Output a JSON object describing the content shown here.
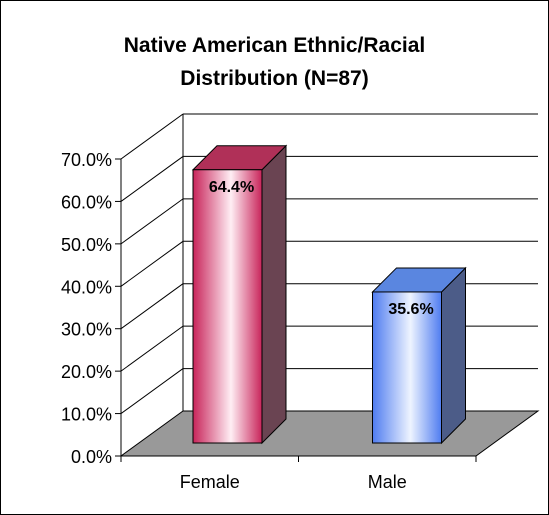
{
  "chart_data": {
    "type": "bar",
    "title_lines": [
      "Native American Ethnic/Racial",
      "Distribution (N=87)"
    ],
    "categories": [
      "Female",
      "Male"
    ],
    "values": [
      64.4,
      35.6
    ],
    "data_labels": [
      "64.4%",
      "35.6%"
    ],
    "y_ticks": [
      "0.0%",
      "10.0%",
      "20.0%",
      "30.0%",
      "40.0%",
      "50.0%",
      "60.0%",
      "70.0%"
    ],
    "ylim": [
      0,
      70
    ],
    "grid": true,
    "legend": "none",
    "xlabel": "",
    "ylabel": "",
    "colors": {
      "female_bar": "#cc3366",
      "male_bar": "#6699ff",
      "floor": "#999999"
    }
  }
}
